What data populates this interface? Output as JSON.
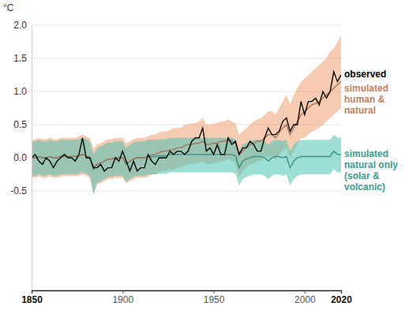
{
  "chart_data": {
    "type": "line",
    "y_label": "°C",
    "x": [
      1850,
      1852,
      1854,
      1856,
      1858,
      1860,
      1862,
      1864,
      1866,
      1868,
      1870,
      1872,
      1874,
      1876,
      1878,
      1880,
      1882,
      1884,
      1886,
      1888,
      1890,
      1892,
      1894,
      1896,
      1898,
      1900,
      1902,
      1904,
      1906,
      1908,
      1910,
      1912,
      1914,
      1916,
      1918,
      1920,
      1922,
      1924,
      1926,
      1928,
      1930,
      1932,
      1934,
      1936,
      1938,
      1940,
      1942,
      1944,
      1946,
      1948,
      1950,
      1952,
      1954,
      1956,
      1958,
      1960,
      1962,
      1964,
      1966,
      1968,
      1970,
      1972,
      1974,
      1976,
      1978,
      1980,
      1982,
      1984,
      1986,
      1988,
      1990,
      1992,
      1994,
      1996,
      1998,
      2000,
      2002,
      2004,
      2006,
      2008,
      2010,
      2012,
      2014,
      2016,
      2018,
      2020
    ],
    "xlim": [
      1850,
      2020
    ],
    "xticks": [
      1850,
      1900,
      1950,
      2000,
      2020
    ],
    "ylim": [
      -2,
      2
    ],
    "yticks": [
      -0.5,
      {
        "value": 0,
        "label": "0.0"
      },
      0.5,
      {
        "value": 1,
        "label": "1.0"
      },
      1.5,
      {
        "value": 2,
        "label": "2.0"
      }
    ],
    "grid": true,
    "legend": "right",
    "series": [
      {
        "name": "observed",
        "color": "#000000",
        "values": [
          0.0,
          0.05,
          -0.05,
          -0.1,
          0.0,
          -0.05,
          -0.15,
          -0.05,
          0.0,
          0.05,
          0.0,
          0.0,
          -0.05,
          0.05,
          0.3,
          0.0,
          0.0,
          -0.15,
          -0.15,
          -0.1,
          -0.2,
          -0.15,
          -0.15,
          0.0,
          -0.05,
          0.1,
          -0.05,
          -0.2,
          -0.05,
          -0.2,
          -0.15,
          -0.15,
          0.05,
          -0.05,
          -0.1,
          0.0,
          0.0,
          0.0,
          0.1,
          0.05,
          0.1,
          0.1,
          0.05,
          0.1,
          0.25,
          0.3,
          0.3,
          0.45,
          0.1,
          0.15,
          0.05,
          0.2,
          0.05,
          0.05,
          0.3,
          0.2,
          0.25,
          0.05,
          0.15,
          0.15,
          0.25,
          0.2,
          0.1,
          0.1,
          0.3,
          0.45,
          0.35,
          0.35,
          0.4,
          0.55,
          0.6,
          0.4,
          0.5,
          0.5,
          0.85,
          0.65,
          0.85,
          0.85,
          0.9,
          0.8,
          1.0,
          0.9,
          1.0,
          1.3,
          1.15,
          1.25
        ]
      },
      {
        "name": "simulated human & natural",
        "color": "#f0a070",
        "values": [
          0.0,
          0.0,
          0.02,
          0.0,
          0.0,
          0.02,
          0.0,
          0.0,
          0.02,
          0.02,
          0.02,
          0.02,
          0.02,
          0.03,
          0.05,
          0.03,
          0.0,
          -0.15,
          -0.1,
          -0.08,
          -0.05,
          -0.02,
          -0.02,
          0.0,
          0.0,
          0.0,
          -0.08,
          -0.05,
          -0.02,
          0.0,
          0.0,
          0.0,
          0.02,
          0.05,
          0.05,
          0.08,
          0.1,
          0.1,
          0.12,
          0.12,
          0.15,
          0.15,
          0.18,
          0.2,
          0.2,
          0.22,
          0.22,
          0.25,
          0.2,
          0.2,
          0.22,
          0.22,
          0.25,
          0.25,
          0.28,
          0.25,
          0.22,
          0.05,
          0.1,
          0.15,
          0.2,
          0.22,
          0.25,
          0.25,
          0.3,
          0.35,
          0.35,
          0.3,
          0.38,
          0.45,
          0.5,
          0.35,
          0.45,
          0.55,
          0.65,
          0.7,
          0.75,
          0.8,
          0.82,
          0.85,
          0.9,
          0.95,
          1.0,
          1.05,
          1.1,
          1.15
        ],
        "lower": [
          -0.3,
          -0.3,
          -0.28,
          -0.3,
          -0.3,
          -0.28,
          -0.3,
          -0.3,
          -0.28,
          -0.28,
          -0.28,
          -0.28,
          -0.28,
          -0.27,
          -0.25,
          -0.27,
          -0.3,
          -0.55,
          -0.4,
          -0.38,
          -0.35,
          -0.32,
          -0.32,
          -0.3,
          -0.3,
          -0.3,
          -0.38,
          -0.35,
          -0.32,
          -0.3,
          -0.3,
          -0.3,
          -0.28,
          -0.25,
          -0.25,
          -0.22,
          -0.2,
          -0.2,
          -0.18,
          -0.18,
          -0.15,
          -0.15,
          -0.12,
          -0.1,
          -0.1,
          -0.08,
          -0.08,
          -0.05,
          -0.1,
          -0.1,
          -0.08,
          -0.08,
          -0.05,
          -0.05,
          -0.02,
          -0.05,
          -0.08,
          -0.3,
          -0.2,
          -0.15,
          -0.1,
          -0.08,
          -0.05,
          -0.05,
          0.0,
          0.02,
          0.02,
          -0.03,
          0.05,
          0.1,
          0.15,
          0.0,
          0.1,
          0.2,
          0.3,
          0.3,
          0.35,
          0.4,
          0.42,
          0.45,
          0.5,
          0.55,
          0.6,
          0.65,
          0.7,
          0.75
        ],
        "upper": [
          0.25,
          0.28,
          0.3,
          0.28,
          0.28,
          0.3,
          0.28,
          0.28,
          0.3,
          0.3,
          0.3,
          0.3,
          0.3,
          0.32,
          0.35,
          0.32,
          0.3,
          0.15,
          0.2,
          0.22,
          0.25,
          0.28,
          0.28,
          0.3,
          0.3,
          0.3,
          0.22,
          0.25,
          0.28,
          0.3,
          0.3,
          0.3,
          0.32,
          0.35,
          0.35,
          0.38,
          0.4,
          0.4,
          0.42,
          0.45,
          0.45,
          0.45,
          0.5,
          0.5,
          0.52,
          0.52,
          0.55,
          0.6,
          0.5,
          0.5,
          0.52,
          0.52,
          0.55,
          0.55,
          0.58,
          0.55,
          0.52,
          0.35,
          0.4,
          0.45,
          0.5,
          0.55,
          0.58,
          0.6,
          0.65,
          0.7,
          0.7,
          0.65,
          0.75,
          0.85,
          0.95,
          0.8,
          0.95,
          1.05,
          1.15,
          1.2,
          1.25,
          1.3,
          1.35,
          1.4,
          1.45,
          1.5,
          1.6,
          1.65,
          1.75,
          1.85
        ]
      },
      {
        "name": "simulated natural only (solar & volcanic)",
        "color": "#4cc3b5",
        "values": [
          0.0,
          0.0,
          0.02,
          0.0,
          0.0,
          0.02,
          0.0,
          0.0,
          0.02,
          0.02,
          0.02,
          0.02,
          0.02,
          0.03,
          0.05,
          0.03,
          0.0,
          -0.18,
          -0.1,
          -0.08,
          -0.05,
          -0.02,
          -0.02,
          0.0,
          0.0,
          0.0,
          -0.1,
          -0.05,
          -0.02,
          0.0,
          0.0,
          0.0,
          0.02,
          0.02,
          0.02,
          0.03,
          0.03,
          0.03,
          0.05,
          0.05,
          0.05,
          0.05,
          0.05,
          0.05,
          0.05,
          0.05,
          0.05,
          0.05,
          0.05,
          0.05,
          0.05,
          0.05,
          0.05,
          0.05,
          0.05,
          0.05,
          0.03,
          -0.15,
          -0.05,
          -0.02,
          0.0,
          0.02,
          0.02,
          0.02,
          0.0,
          -0.05,
          0.0,
          0.02,
          0.02,
          0.0,
          0.02,
          -0.15,
          -0.05,
          0.0,
          0.02,
          0.02,
          0.02,
          0.02,
          0.02,
          0.02,
          0.02,
          0.02,
          0.02,
          0.1,
          0.05,
          0.05
        ],
        "lower": [
          -0.27,
          -0.27,
          -0.25,
          -0.27,
          -0.27,
          -0.25,
          -0.27,
          -0.27,
          -0.25,
          -0.25,
          -0.25,
          -0.25,
          -0.25,
          -0.24,
          -0.22,
          -0.24,
          -0.27,
          -0.55,
          -0.38,
          -0.35,
          -0.32,
          -0.29,
          -0.29,
          -0.27,
          -0.27,
          -0.27,
          -0.37,
          -0.32,
          -0.29,
          -0.27,
          -0.27,
          -0.27,
          -0.25,
          -0.25,
          -0.25,
          -0.24,
          -0.24,
          -0.24,
          -0.22,
          -0.22,
          -0.22,
          -0.22,
          -0.22,
          -0.22,
          -0.22,
          -0.22,
          -0.22,
          -0.22,
          -0.22,
          -0.22,
          -0.22,
          -0.22,
          -0.22,
          -0.22,
          -0.22,
          -0.22,
          -0.24,
          -0.42,
          -0.32,
          -0.29,
          -0.27,
          -0.25,
          -0.25,
          -0.25,
          -0.27,
          -0.32,
          -0.27,
          -0.25,
          -0.25,
          -0.27,
          -0.25,
          -0.42,
          -0.32,
          -0.27,
          -0.25,
          -0.25,
          -0.25,
          -0.25,
          -0.25,
          -0.25,
          -0.25,
          -0.25,
          -0.25,
          -0.17,
          -0.22,
          -0.22
        ],
        "upper": [
          0.25,
          0.25,
          0.27,
          0.25,
          0.25,
          0.27,
          0.25,
          0.25,
          0.27,
          0.27,
          0.27,
          0.27,
          0.27,
          0.28,
          0.3,
          0.28,
          0.25,
          0.05,
          0.15,
          0.17,
          0.2,
          0.23,
          0.23,
          0.25,
          0.25,
          0.25,
          0.15,
          0.2,
          0.23,
          0.25,
          0.25,
          0.25,
          0.27,
          0.27,
          0.27,
          0.28,
          0.28,
          0.28,
          0.3,
          0.3,
          0.3,
          0.3,
          0.3,
          0.3,
          0.3,
          0.3,
          0.3,
          0.3,
          0.3,
          0.3,
          0.3,
          0.3,
          0.3,
          0.3,
          0.3,
          0.3,
          0.28,
          0.1,
          0.2,
          0.23,
          0.25,
          0.27,
          0.27,
          0.27,
          0.25,
          0.2,
          0.25,
          0.27,
          0.27,
          0.25,
          0.27,
          0.1,
          0.2,
          0.25,
          0.27,
          0.27,
          0.27,
          0.27,
          0.27,
          0.27,
          0.27,
          0.27,
          0.27,
          0.35,
          0.3,
          0.3
        ]
      }
    ]
  }
}
